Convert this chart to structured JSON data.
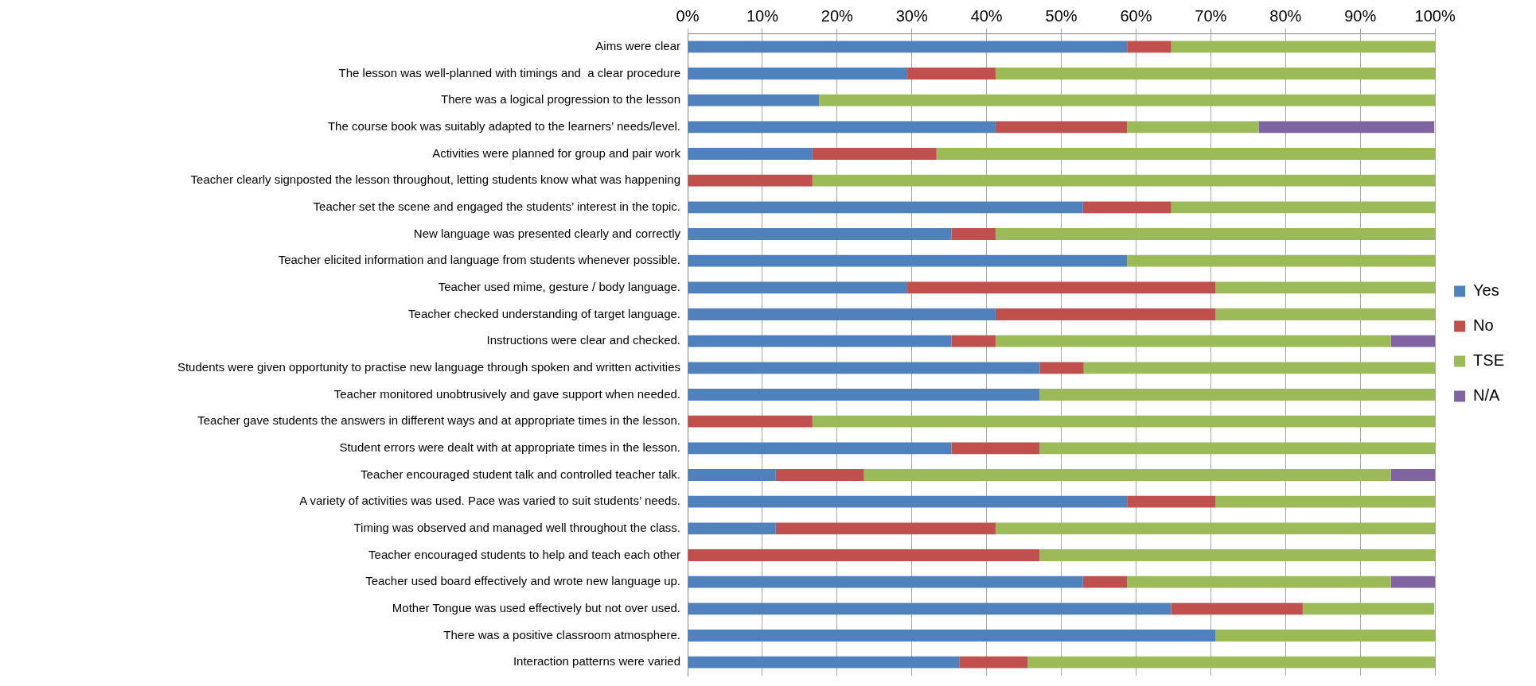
{
  "chart_data": {
    "type": "bar",
    "orientation": "horizontal",
    "stacked": true,
    "categories": [
      "Aims were clear",
      "The lesson was well-planned with timings and  a clear procedure",
      "There was a logical progression to the lesson",
      "The course book was suitably adapted to the learners’ needs/level.",
      "Activities were planned for group and pair work",
      "Teacher clearly signposted the lesson throughout, letting students know what was happening",
      "Teacher set the scene and engaged the students’ interest in the topic.",
      "New language was presented clearly and correctly",
      "Teacher elicited information and language from students whenever possible.",
      "Teacher used mime, gesture / body language.",
      "Teacher checked understanding of target language.",
      "Instructions were clear and checked.",
      "Students were given opportunity to practise new language through spoken and written activities",
      "Teacher monitored unobtrusively and gave support when needed.",
      "Teacher gave students the answers in different ways and at appropriate times in the lesson.",
      "Student errors were dealt with at appropriate times in the lesson.",
      "Teacher encouraged student talk and controlled teacher talk.",
      "A variety of activities was used. Pace was varied to suit students’ needs.",
      "Timing was observed and managed well throughout the class.",
      "Teacher encouraged students to help and teach each other",
      "Teacher used board effectively and wrote new language up.",
      "Mother Tongue was used effectively but not over used.",
      "There was a positive classroom atmosphere.",
      "Interaction patterns were varied"
    ],
    "series": [
      {
        "name": "Yes",
        "color": "#4f81bd",
        "values": [
          58.8,
          29.4,
          17.6,
          41.2,
          16.7,
          0,
          52.9,
          35.3,
          58.8,
          29.4,
          41.2,
          35.3,
          47.1,
          47.1,
          0,
          35.3,
          11.8,
          58.8,
          11.8,
          0,
          52.9,
          64.7,
          70.6,
          36.4
        ]
      },
      {
        "name": "No",
        "color": "#c0504d",
        "values": [
          5.9,
          11.8,
          0,
          17.6,
          16.6,
          16.7,
          11.8,
          5.9,
          0,
          41.2,
          29.4,
          5.9,
          5.9,
          0,
          16.7,
          11.8,
          11.8,
          11.8,
          29.4,
          47.1,
          5.9,
          17.6,
          0,
          9.1
        ]
      },
      {
        "name": "TSE",
        "color": "#9bbb59",
        "values": [
          35.3,
          58.8,
          82.4,
          17.6,
          66.7,
          83.3,
          35.3,
          58.8,
          41.2,
          29.4,
          29.4,
          52.9,
          47.0,
          52.9,
          83.3,
          52.9,
          70.5,
          29.4,
          58.8,
          52.9,
          35.3,
          17.6,
          29.4,
          54.5
        ]
      },
      {
        "name": "N/A",
        "color": "#8064a2",
        "values": [
          0,
          0,
          0,
          23.5,
          0,
          0,
          0,
          0,
          0,
          0,
          0,
          5.9,
          0,
          0,
          0,
          0,
          5.9,
          0,
          0,
          0,
          5.9,
          0,
          0,
          0
        ]
      }
    ],
    "xlim": [
      0,
      100
    ],
    "xticks": [
      {
        "value": 0,
        "label": "0%"
      },
      {
        "value": 10,
        "label": "10%"
      },
      {
        "value": 20,
        "label": "20%"
      },
      {
        "value": 30,
        "label": "30%"
      },
      {
        "value": 40,
        "label": "40%"
      },
      {
        "value": 50,
        "label": "50%"
      },
      {
        "value": 60,
        "label": "60%"
      },
      {
        "value": 70,
        "label": "70%"
      },
      {
        "value": 80,
        "label": "80%"
      },
      {
        "value": 90,
        "label": "90%"
      },
      {
        "value": 100,
        "label": "100%"
      }
    ],
    "grid": "x",
    "legend": "right"
  }
}
